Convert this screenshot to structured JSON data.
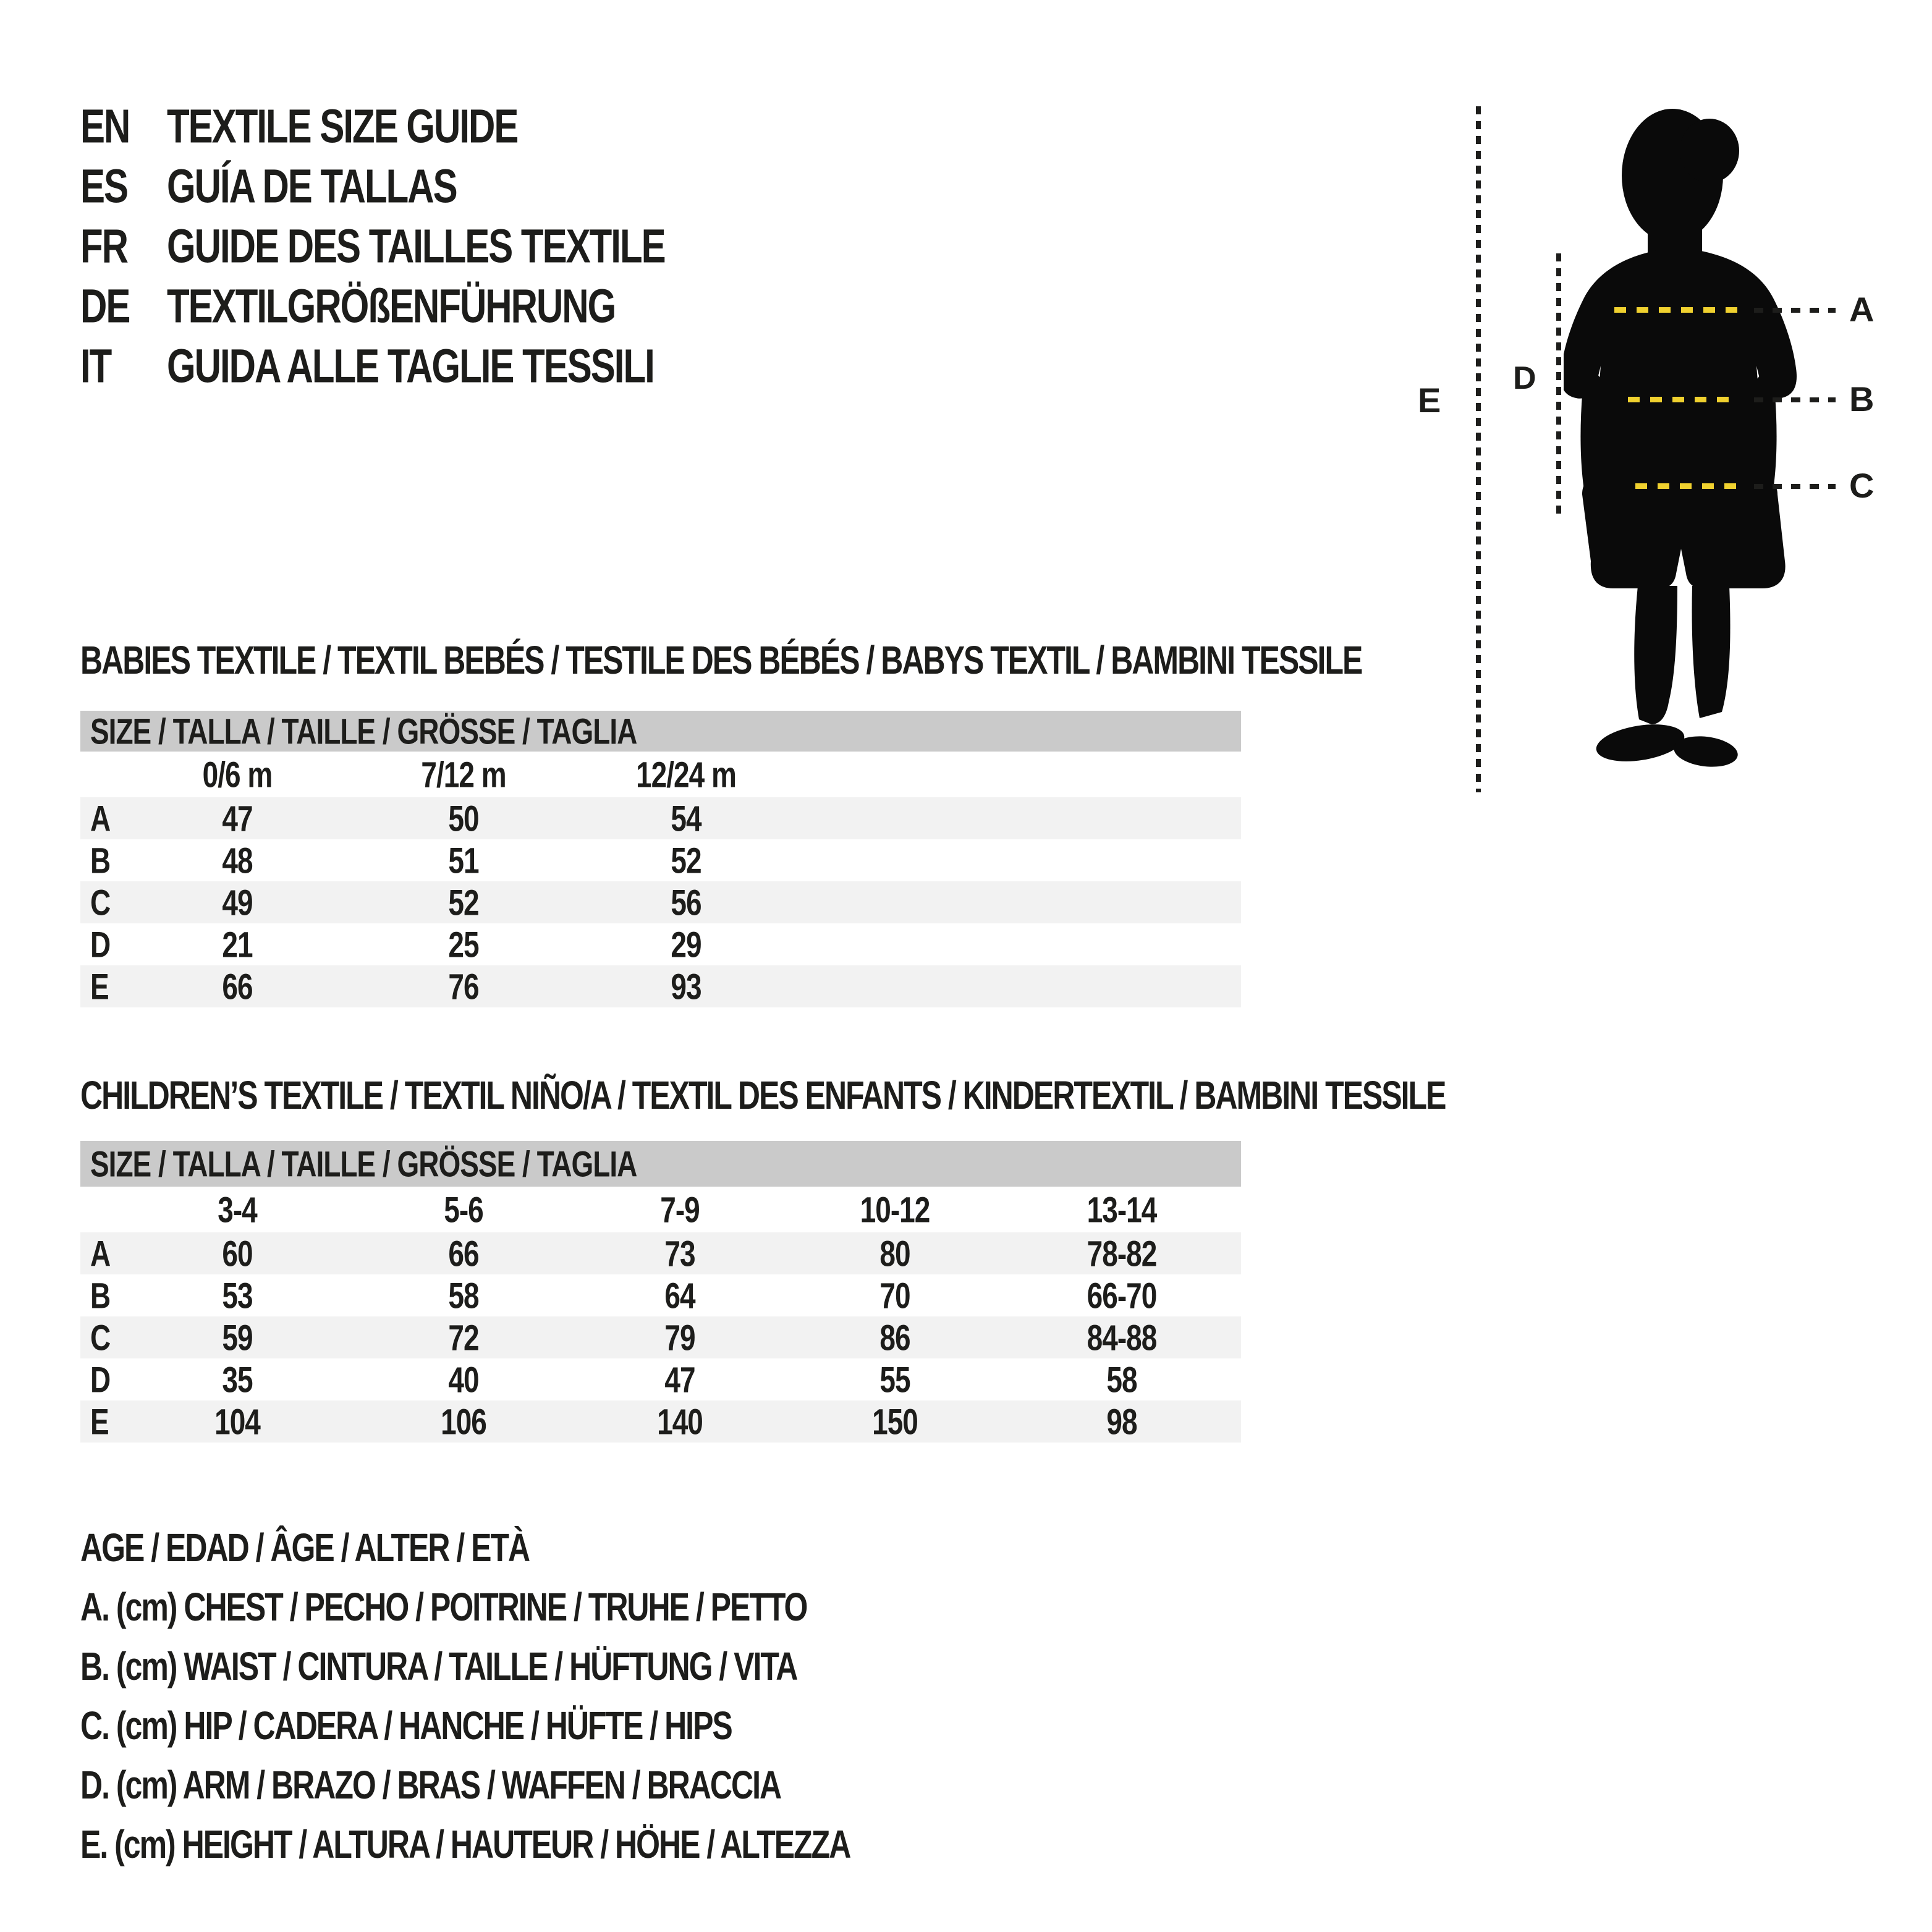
{
  "header": {
    "rows": [
      {
        "code": "EN",
        "title": "TEXTILE SIZE GUIDE"
      },
      {
        "code": "ES",
        "title": "GUÍA DE TALLAS"
      },
      {
        "code": "FR",
        "title": "GUIDE DES TAILLES TEXTILE"
      },
      {
        "code": "DE",
        "title": "TEXTILGRÖßENFÜHRUNG"
      },
      {
        "code": "IT",
        "title": "GUIDA ALLE TAGLIE TESSILI"
      }
    ]
  },
  "figure": {
    "label_a": "A",
    "label_b": "B",
    "label_c": "C",
    "label_d": "D",
    "label_e": "E",
    "silhouette": "child-silhouette"
  },
  "babies": {
    "heading": "BABIES TEXTILE / TEXTIL BEBÉS / TESTILE DES BÉBÉS / BABYS TEXTIL / BAMBINI TESSILE",
    "size_header": "SIZE / TALLA / TAILLE / GRÖSSE / TAGLIA",
    "columns": [
      "0/6 m",
      "7/12 m",
      "12/24 m"
    ],
    "rows": [
      {
        "label": "A",
        "values": [
          "47",
          "50",
          "54"
        ]
      },
      {
        "label": "B",
        "values": [
          "48",
          "51",
          "52"
        ]
      },
      {
        "label": "C",
        "values": [
          "49",
          "52",
          "56"
        ]
      },
      {
        "label": "D",
        "values": [
          "21",
          "25",
          "29"
        ]
      },
      {
        "label": "E",
        "values": [
          "66",
          "76",
          "93"
        ]
      }
    ]
  },
  "children": {
    "heading": "CHILDREN’S TEXTILE / TEXTIL NIÑO/A / TEXTIL DES ENFANTS / KINDERTEXTIL / BAMBINI TESSILE",
    "size_header": "SIZE / TALLA / TAILLE / GRÖSSE / TAGLIA",
    "columns": [
      "3-4",
      "5-6",
      "7-9",
      "10-12",
      "13-14"
    ],
    "rows": [
      {
        "label": "A",
        "values": [
          "60",
          "66",
          "73",
          "80",
          "78-82"
        ]
      },
      {
        "label": "B",
        "values": [
          "53",
          "58",
          "64",
          "70",
          "66-70"
        ]
      },
      {
        "label": "C",
        "values": [
          "59",
          "72",
          "79",
          "86",
          "84-88"
        ]
      },
      {
        "label": "D",
        "values": [
          "35",
          "40",
          "47",
          "55",
          "58"
        ]
      },
      {
        "label": "E",
        "values": [
          "104",
          "106",
          "140",
          "150",
          "98"
        ]
      }
    ]
  },
  "legend": {
    "lines": [
      "AGE / EDAD / ÂGE / ALTER / ETÀ",
      "A. (cm) CHEST / PECHO / POITRINE / TRUHE / PETTO",
      "B. (cm) WAIST / CINTURA / TAILLE / HÜFTUNG / VITA",
      "C. (cm) HIP / CADERA / HANCHE / HÜFTE / HIPS",
      "D. (cm) ARM / BRAZO / BRAS / WAFFEN / BRACCIA",
      "E. (cm) HEIGHT / ALTURA / HAUTEUR / HÖHE / ALTEZZA"
    ]
  },
  "colors": {
    "text": "#1d1d1b",
    "accent_yellow": "#f0d12f",
    "table_header_gray": "#cacaca",
    "row_shade": "#f2f2f2"
  }
}
